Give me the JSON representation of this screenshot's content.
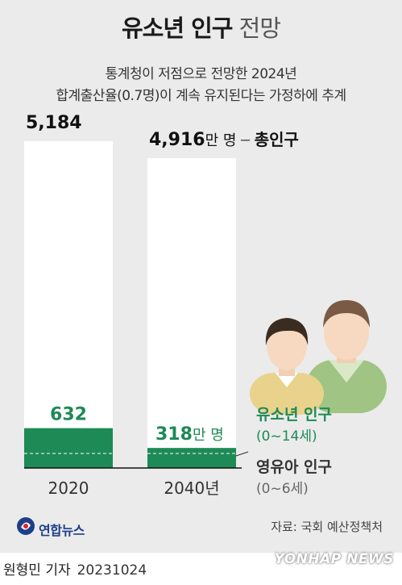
{
  "title": {
    "bold": "유소년 인구",
    "light": "전망"
  },
  "subtitle_lines": [
    "통계청이 저점으로 전망한 2024년",
    "합계출산율(0.7명)이 계속 유지된다는 가정하에 추계"
  ],
  "chart_data": {
    "type": "bar",
    "categories": [
      "2020",
      "2040년"
    ],
    "series": [
      {
        "name": "총인구",
        "values": [
          5184,
          4916
        ]
      },
      {
        "name": "유소년 인구",
        "values": [
          632,
          318
        ]
      }
    ],
    "total_labels": [
      "5,184",
      "4,916"
    ],
    "youth_labels": [
      "632",
      "318"
    ],
    "unit_label": "만 명",
    "total_series_label": "총인구",
    "legend": {
      "youth_name": "유소년 인구",
      "youth_range": "(0~14세)",
      "infant_name": "영유아 인구",
      "infant_range": "(0~6세)"
    },
    "colors": {
      "total": "#ffffff",
      "youth": "#1e8a56",
      "youth_text": "#1e8a56",
      "total_text": "#111111"
    },
    "ylim": [
      0,
      5184
    ]
  },
  "source": "자료: 국회 예산정책처",
  "logo_text": "연합뉴스",
  "byline": {
    "reporter": "원형민 기자",
    "date": "20231024"
  },
  "watermark": "YONHAP NEWS",
  "icons": [
    "people-illustration-icon",
    "yonhap-logo-icon"
  ]
}
